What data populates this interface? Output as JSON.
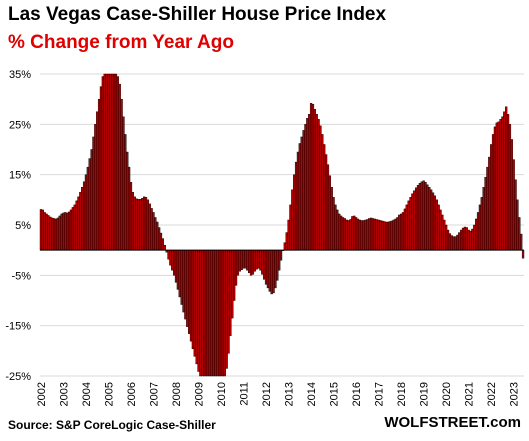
{
  "chart_data": {
    "type": "bar",
    "title": "Las Vegas Case-Shiller House Price Index",
    "subtitle": "% Change from Year Ago",
    "xlabel": "",
    "ylabel": "",
    "ylim": [
      -25,
      35
    ],
    "yticks": [
      "35%",
      "25%",
      "15%",
      "5%",
      "-5%",
      "-15%",
      "-25%"
    ],
    "ytick_values": [
      35,
      25,
      15,
      5,
      -5,
      -15,
      -25
    ],
    "x_categories": [
      "2002",
      "2003",
      "2004",
      "2005",
      "2006",
      "2007",
      "2008",
      "2009",
      "2010",
      "2011",
      "2012",
      "2013",
      "2014",
      "2015",
      "2016",
      "2017",
      "2018",
      "2019",
      "2020",
      "2021",
      "2022",
      "2023"
    ],
    "grid": true,
    "bar_color": "#b30000",
    "bar_edge_color": "#000000",
    "series": [
      {
        "values_by_year": {
          "2002": [
            8.1,
            8.0,
            7.5,
            7.2,
            6.9,
            6.6,
            6.4,
            6.3,
            6.2,
            6.4,
            6.8,
            7.2
          ],
          "2003": [
            7.4,
            7.5,
            7.4,
            7.6,
            8.0,
            8.5,
            9.0,
            9.8,
            10.6,
            11.5,
            12.5,
            13.6
          ],
          "2004": [
            15.0,
            16.5,
            18.2,
            20.0,
            22.5,
            25.0,
            27.5,
            30.0,
            32.5,
            34.5,
            35,
            35
          ],
          "2005": [
            35,
            35,
            35,
            35,
            35,
            34.5,
            33.0,
            30.0,
            26.5,
            23.0,
            19.5,
            16.5
          ],
          "2006": [
            13.5,
            11.5,
            10.6,
            10.2,
            10.1,
            10.1,
            10.3,
            10.6,
            10.5,
            10.0,
            9.2,
            8.3
          ],
          "2007": [
            7.5,
            6.5,
            5.6,
            4.5,
            3.4,
            2.3,
            1.0,
            -0.4,
            -1.8,
            -3.0,
            -4.0,
            -5.0
          ],
          "2008": [
            -6.4,
            -7.8,
            -9.3,
            -10.8,
            -12.3,
            -13.7,
            -15.2,
            -16.6,
            -18.1,
            -19.6,
            -21.1,
            -22.6
          ],
          "2009": [
            -24.1,
            -25,
            -25,
            -25,
            -25,
            -25,
            -25,
            -25,
            -25,
            -25,
            -25,
            -25
          ],
          "2010": [
            -25,
            -25,
            -25,
            -23.5,
            -20.5,
            -17.0,
            -13.5,
            -10.0,
            -7.0,
            -5.0,
            -4.2,
            -3.9
          ],
          "2011": [
            -3.6,
            -3.6,
            -4.0,
            -4.5,
            -5.0,
            -4.8,
            -4.2,
            -3.8,
            -3.6,
            -4.0,
            -4.8,
            -5.8
          ],
          "2012": [
            -6.8,
            -7.5,
            -8.2,
            -8.7,
            -8.5,
            -7.5,
            -6.0,
            -4.0,
            -2.0,
            0.0,
            1.5,
            3.5
          ],
          "2013": [
            6.0,
            9.0,
            12.0,
            15.0,
            17.5,
            19.5,
            21.2,
            22.5,
            23.8,
            25.0,
            26.2,
            27.0
          ],
          "2014": [
            29.2,
            29.0,
            28.0,
            27.0,
            26.0,
            24.7,
            23.0,
            21.0,
            19.0,
            17.0,
            14.8,
            12.5
          ],
          "2015": [
            10.5,
            9.0,
            8.0,
            7.2,
            6.8,
            6.5,
            6.3,
            6.0,
            5.9,
            6.1,
            6.7,
            6.8
          ],
          "2016": [
            6.5,
            6.2,
            6.0,
            5.9,
            5.9,
            6.0,
            6.1,
            6.3,
            6.4,
            6.3,
            6.2,
            6.1
          ],
          "2017": [
            6.0,
            5.9,
            5.8,
            5.7,
            5.6,
            5.6,
            5.7,
            5.8,
            6.0,
            6.2,
            6.5,
            7.0
          ],
          "2018": [
            7.2,
            7.5,
            8.2,
            9.0,
            9.8,
            10.5,
            11.2,
            11.8,
            12.4,
            12.9,
            13.3,
            13.6
          ],
          "2019": [
            13.8,
            13.5,
            13.0,
            12.5,
            12.0,
            11.4,
            10.8,
            10.0,
            9.0,
            8.0,
            7.0,
            6.0
          ],
          "2020": [
            5.0,
            4.0,
            3.3,
            2.9,
            2.7,
            2.7,
            3.0,
            3.5,
            4.0,
            4.4,
            4.6,
            4.5
          ],
          "2021": [
            4.0,
            3.8,
            4.2,
            5.0,
            6.2,
            7.5,
            9.0,
            10.5,
            12.5,
            14.5,
            16.5,
            18.5
          ],
          "2022": [
            21.0,
            23.0,
            24.5,
            25.3,
            25.5,
            26.0,
            26.5,
            27.5,
            28.5,
            27.0,
            25.0,
            22.0
          ],
          "2023": [
            18.0,
            14.0,
            10.0,
            6.5,
            3.2,
            -1.6
          ]
        }
      }
    ]
  },
  "footer": {
    "source": "Source: S&P CoreLogic Case-Shiller",
    "brand": "WOLFSTREET.com"
  }
}
